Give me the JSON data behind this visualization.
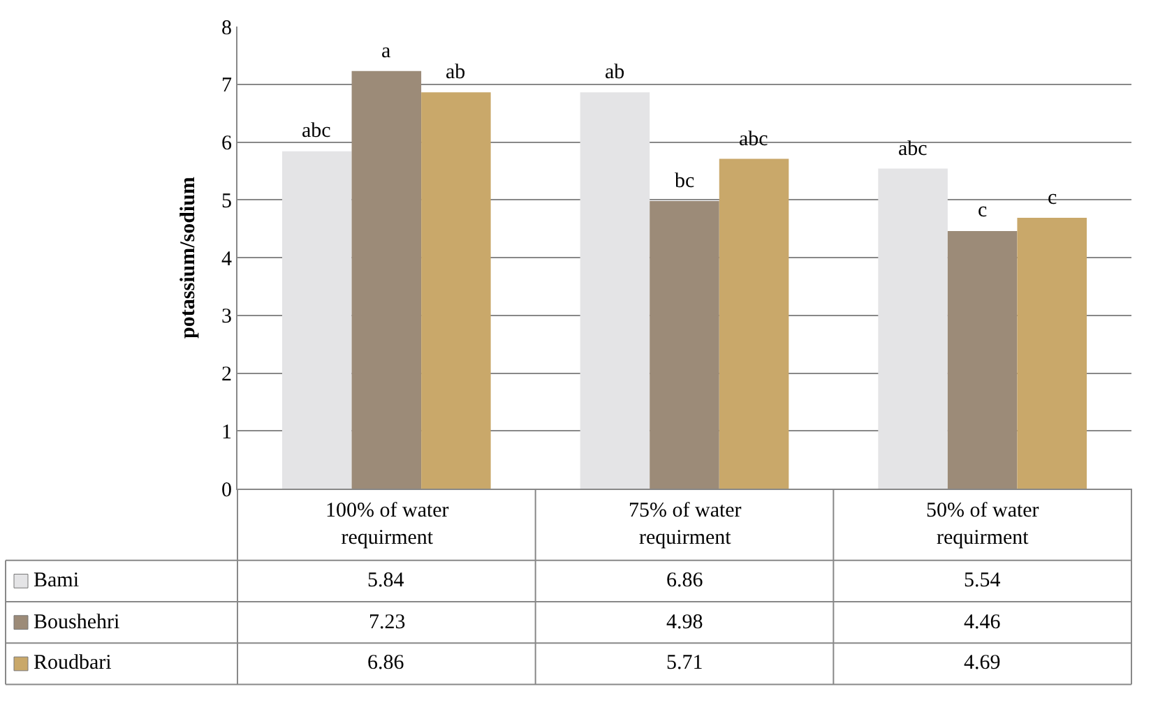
{
  "chart_data": {
    "type": "bar",
    "ylabel": "potassium/sodium",
    "categories": [
      "100% of water requirment",
      "75% of water requirment",
      "50% of water requirment"
    ],
    "series": [
      {
        "name": "Bami",
        "color": "#e4e4e6",
        "values": [
          5.84,
          6.86,
          5.54
        ]
      },
      {
        "name": "Boushehri",
        "color": "#9c8b78",
        "values": [
          7.23,
          4.98,
          4.46
        ]
      },
      {
        "name": "Roudbari",
        "color": "#c9a86a",
        "values": [
          6.86,
          5.71,
          4.69
        ]
      }
    ],
    "ylim": [
      0,
      8
    ],
    "yticks": [
      0,
      1,
      2,
      3,
      4,
      5,
      6,
      7,
      8
    ],
    "grid": "y",
    "legend": "bottom",
    "data_labels": true,
    "annotations": [
      "abc",
      "a",
      "ab",
      "ab",
      "bc",
      "abc",
      "abc",
      "c",
      "c"
    ]
  }
}
